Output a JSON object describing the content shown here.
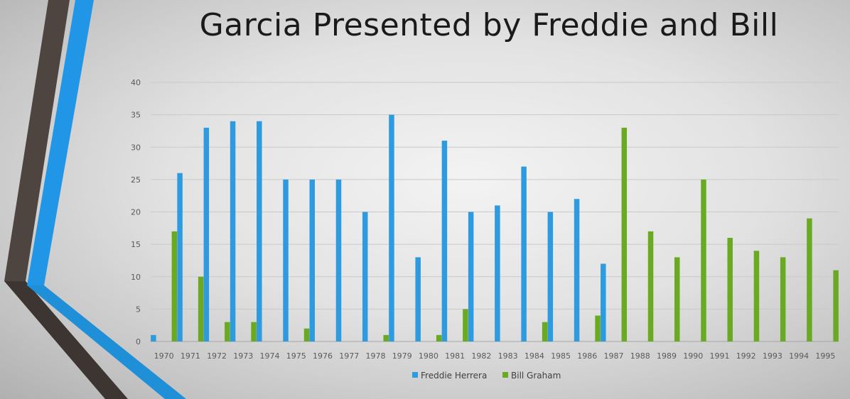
{
  "chart_data": {
    "type": "bar",
    "title": "Garcia Presented by Freddie and Bill",
    "xlabel": "",
    "ylabel": "",
    "ylim": [
      0,
      40
    ],
    "yticks": [
      0,
      5,
      10,
      15,
      20,
      25,
      30,
      35,
      40
    ],
    "grid": true,
    "legend_position": "bottom",
    "categories": [
      "1970",
      "1971",
      "1972",
      "1973",
      "1974",
      "1975",
      "1976",
      "1977",
      "1978",
      "1979",
      "1980",
      "1981",
      "1982",
      "1983",
      "1984",
      "1985",
      "1986",
      "1987",
      "1988",
      "1989",
      "1990",
      "1991",
      "1992",
      "1993",
      "1994",
      "1995"
    ],
    "series": [
      {
        "name": "Freddie Herrera",
        "color": "#2e9be0",
        "values": [
          1,
          26,
          33,
          34,
          34,
          25,
          25,
          25,
          20,
          35,
          13,
          31,
          20,
          21,
          27,
          20,
          22,
          12,
          0,
          0,
          0,
          0,
          0,
          0,
          0,
          0
        ]
      },
      {
        "name": "Bill Graham",
        "color": "#6aaa22",
        "values": [
          17,
          10,
          3,
          3,
          0,
          2,
          0,
          0,
          1,
          0,
          1,
          5,
          0,
          0,
          3,
          0,
          4,
          33,
          17,
          13,
          25,
          16,
          14,
          13,
          19,
          11
        ]
      }
    ]
  }
}
